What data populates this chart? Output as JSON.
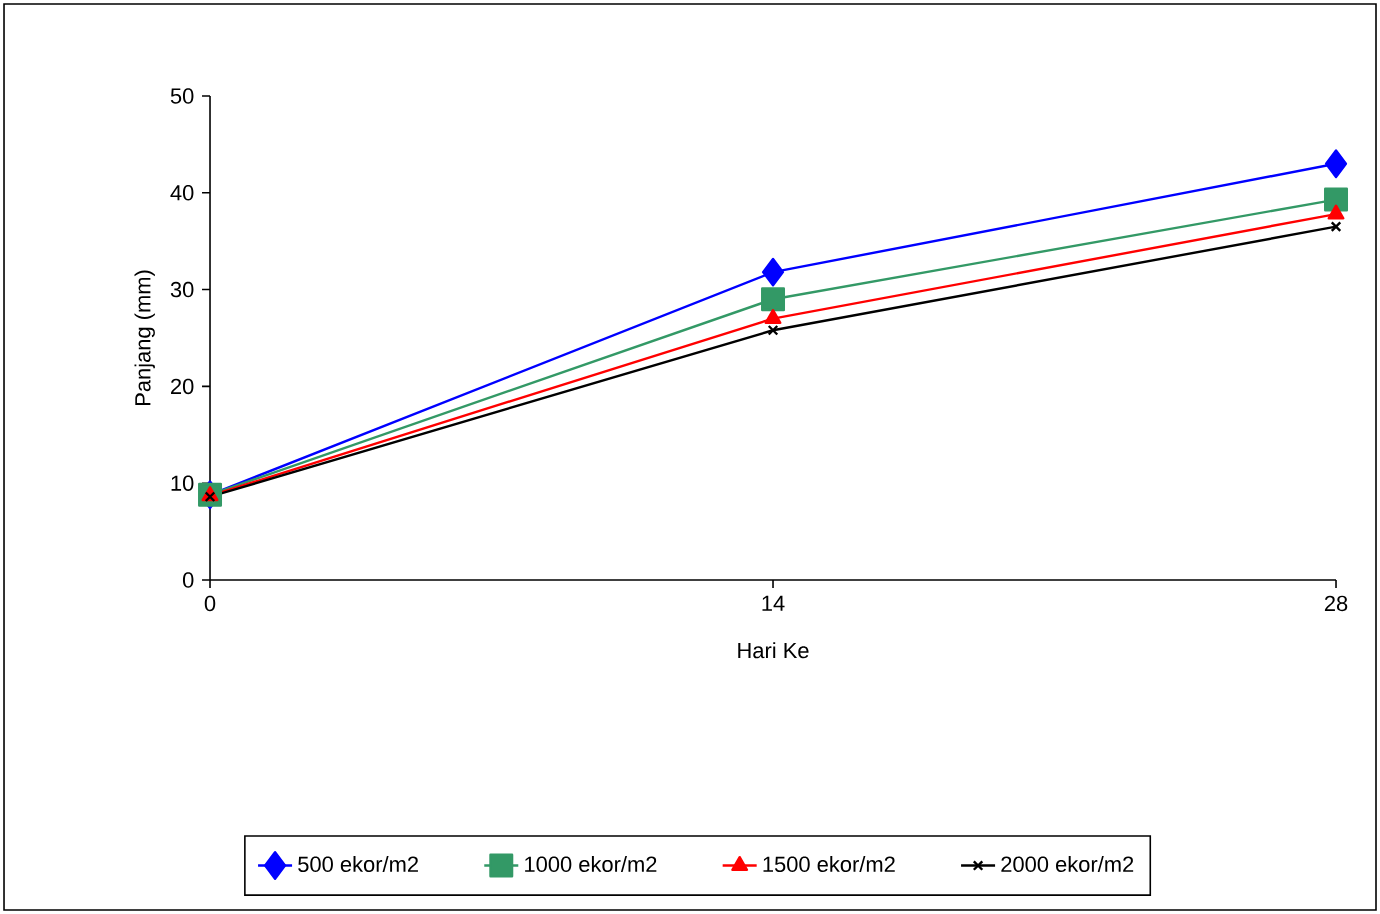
{
  "chart_data": {
    "type": "line",
    "xlabel": "Hari Ke",
    "ylabel": "Panjang (mm)",
    "x": [
      0,
      14,
      28
    ],
    "xlim": [
      0,
      28
    ],
    "xticks": [
      0,
      14,
      28
    ],
    "ylim": [
      0,
      50
    ],
    "yticks": [
      0,
      10,
      20,
      30,
      40,
      50
    ],
    "grid": false,
    "legend": "bottom",
    "line_style": "solid",
    "series": [
      {
        "name": "500  ekor/m2",
        "color": "#0000ff",
        "marker": "diamond",
        "values": [
          8.8,
          31.8,
          43
        ]
      },
      {
        "name": "1000 ekor/m2",
        "color": "#339966",
        "marker": "square",
        "values": [
          8.8,
          29,
          39.3
        ]
      },
      {
        "name": "1500 ekor/m2",
        "color": "#ff0000",
        "marker": "triangle",
        "values": [
          8.7,
          27,
          37.8
        ]
      },
      {
        "name": "2000 ekor/m2",
        "color": "#000000",
        "marker": "cross",
        "values": [
          8.6,
          25.8,
          36.5
        ]
      }
    ]
  }
}
